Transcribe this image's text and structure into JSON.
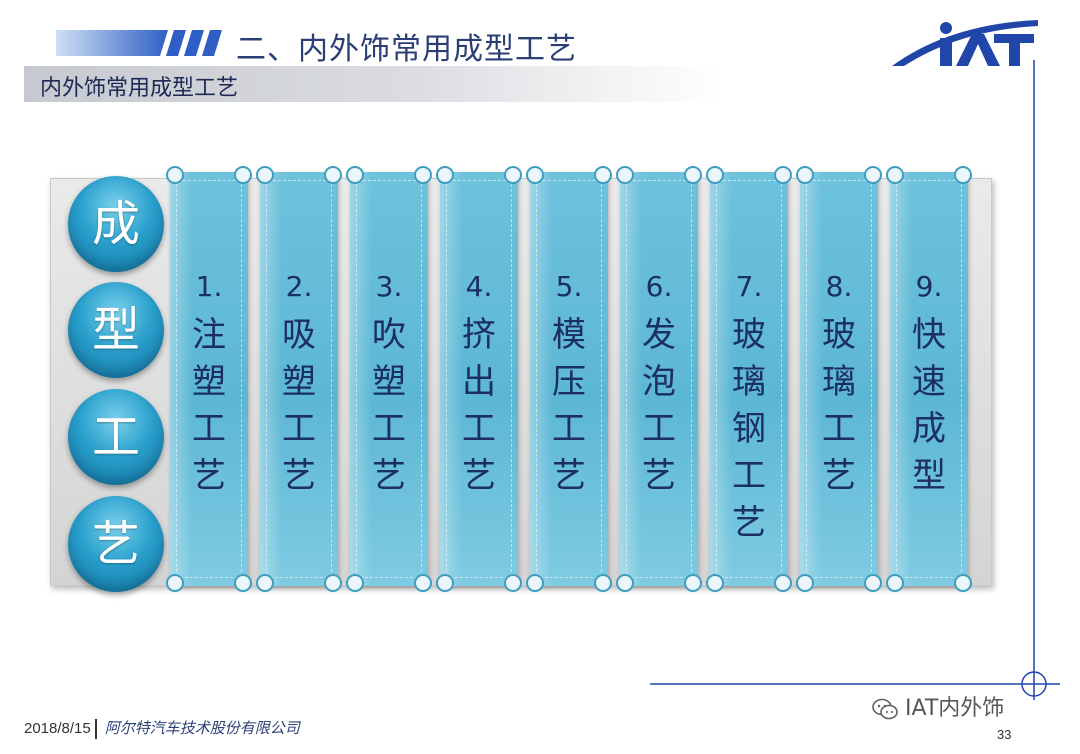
{
  "header": {
    "title": "二、内外饰常用成型工艺",
    "logo_text": "IAT",
    "accent_color": "#1f46a8"
  },
  "subheader": {
    "title": "内外饰常用成型工艺"
  },
  "diagram": {
    "circles": [
      "成",
      "型",
      "工",
      "艺"
    ],
    "circle_color": "#2aa0cc",
    "scroll_color": "#5cb7d4",
    "processes": [
      {
        "num": "1.",
        "name": "注塑工艺"
      },
      {
        "num": "2.",
        "name": "吸塑工艺"
      },
      {
        "num": "3.",
        "name": "吹塑工艺"
      },
      {
        "num": "4.",
        "name": "挤出工艺"
      },
      {
        "num": "5.",
        "name": "模压工艺"
      },
      {
        "num": "6.",
        "name": "发泡工艺"
      },
      {
        "num": "7.",
        "name": "玻璃钢工艺"
      },
      {
        "num": "8.",
        "name": "玻璃工艺"
      },
      {
        "num": "9.",
        "name": "快速成型"
      }
    ]
  },
  "footer": {
    "date": "2018/8/15",
    "company": "阿尔特汽车技术股份有限公司",
    "page_number": "33"
  },
  "watermark": {
    "text": "IAT内外饰",
    "icon": "wechat-icon"
  }
}
